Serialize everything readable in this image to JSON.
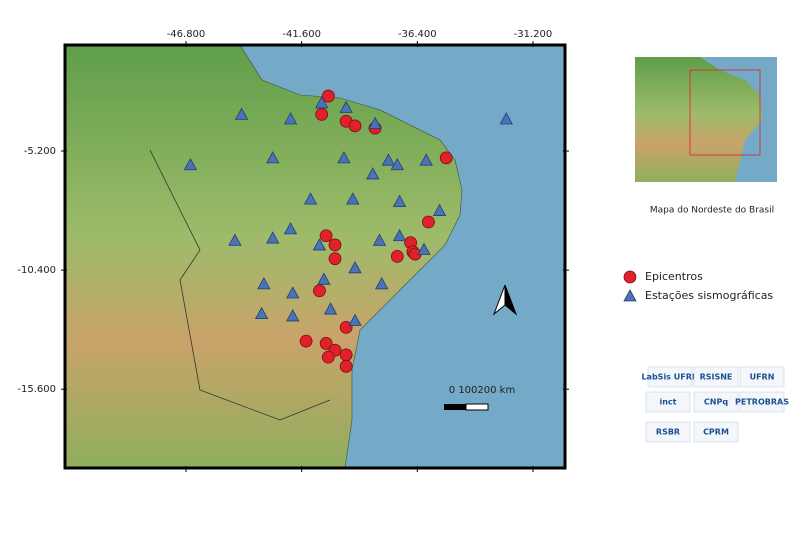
{
  "map": {
    "xlim": [
      -52.24,
      -29.76
    ],
    "ylim": [
      -0.57,
      -19.04
    ],
    "xticks": [
      {
        "value": -46.8,
        "label": "-46.800"
      },
      {
        "value": -41.6,
        "label": "-41.600"
      },
      {
        "value": -36.4,
        "label": "-36.400"
      },
      {
        "value": -31.2,
        "label": "-31.200"
      }
    ],
    "yticks": [
      {
        "value": -5.2,
        "label": "-5.200"
      },
      {
        "value": -10.4,
        "label": "-10.400"
      },
      {
        "value": -15.6,
        "label": "-15.600"
      }
    ],
    "series": [
      {
        "name": "Epicentros",
        "color": "#e0202a",
        "shape": "circle",
        "lon": [
          -40.4,
          -40.7,
          -39.6,
          -39.2,
          -38.3,
          -35.1,
          -35.9,
          -40.5,
          -40.1,
          -36.7,
          -36.6,
          -37.3,
          -36.5,
          -40.1,
          -40.8,
          -41.4,
          -39.6,
          -40.5,
          -40.1,
          -39.6,
          -40.4,
          -39.6
        ],
        "lat": [
          -2.8,
          -3.6,
          -3.9,
          -4.1,
          -4.2,
          -5.5,
          -8.3,
          -8.9,
          -9.3,
          -9.2,
          -9.6,
          -9.8,
          -9.7,
          -9.9,
          -11.3,
          -13.5,
          -12.9,
          -13.6,
          -13.9,
          -14.1,
          -14.2,
          -14.6
        ]
      },
      {
        "name": "Estações sismográficas",
        "color": "#4a72b8",
        "shape": "triangle",
        "lon": [
          -44.3,
          -42.1,
          -40.7,
          -39.6,
          -38.3,
          -42.9,
          -39.7,
          -38.4,
          -37.7,
          -37.3,
          -36.0,
          -46.6,
          -41.2,
          -39.3,
          -37.2,
          -35.4,
          -44.6,
          -42.9,
          -42.1,
          -40.8,
          -38.1,
          -37.2,
          -36.1,
          -43.3,
          -42.0,
          -40.6,
          -39.2,
          -38.0,
          -43.4,
          -42.0,
          -40.3,
          -39.2,
          -32.4
        ],
        "lat": [
          -3.6,
          -3.8,
          -3.1,
          -3.3,
          -4.0,
          -5.5,
          -5.5,
          -6.2,
          -5.6,
          -5.8,
          -5.6,
          -5.8,
          -7.3,
          -7.3,
          -7.4,
          -7.8,
          -9.1,
          -9.0,
          -8.6,
          -9.3,
          -9.1,
          -8.9,
          -9.5,
          -11.0,
          -11.4,
          -10.8,
          -10.3,
          -11.0,
          -12.3,
          -12.4,
          -12.1,
          -12.6,
          -3.8
        ]
      }
    ],
    "scale_bar": "0  100200 km"
  },
  "inset": {
    "caption": "Mapa do  Nordeste do Brasil"
  },
  "logos": [
    "LabSis UFRN",
    "RSISNE",
    "UFRN",
    "inct",
    "CNPq",
    "PETROBRAS",
    "RSBR",
    "CPRM"
  ]
}
